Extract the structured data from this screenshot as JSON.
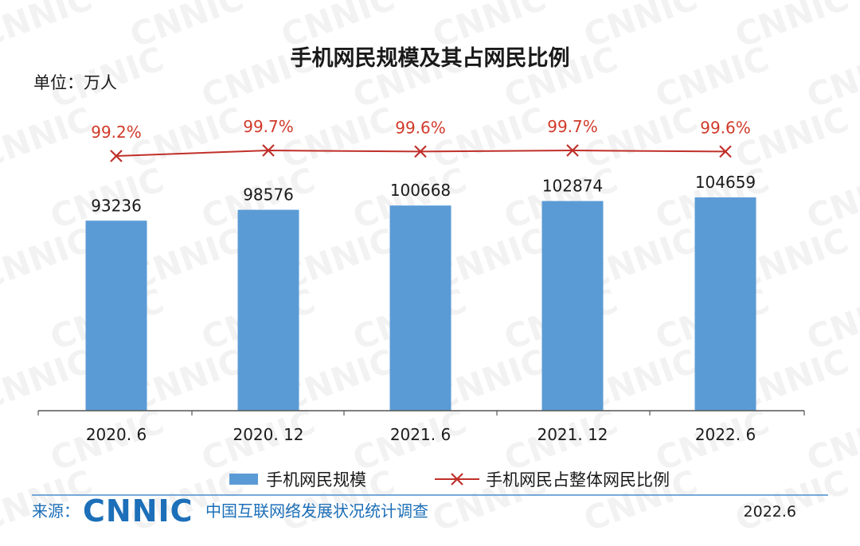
{
  "chart_data": {
    "type": "bar",
    "title": "手机网民规模及其占网民比例",
    "unit_label": "单位：万人",
    "categories": [
      "2020. 6",
      "2020. 12",
      "2021. 6",
      "2021. 12",
      "2022. 6"
    ],
    "series": [
      {
        "name": "手机网民规模",
        "type": "bar",
        "values": [
          93236,
          98576,
          100668,
          102874,
          104659
        ],
        "labels": [
          "93236",
          "98576",
          "100668",
          "102874",
          "104659"
        ]
      },
      {
        "name": "手机网民占整体网民比例",
        "type": "line",
        "values": [
          99.2,
          99.7,
          99.6,
          99.7,
          99.6
        ],
        "labels": [
          "99.2%",
          "99.7%",
          "99.6%",
          "99.7%",
          "99.6%"
        ]
      }
    ],
    "legend": "bottom",
    "grid": false
  },
  "footer": {
    "source_label": "来源：",
    "logo_text": "CNNIC",
    "org_name": "中国互联网络发展状况统计调查",
    "date": "2022.6"
  },
  "watermark": "CNNIC",
  "colors": {
    "bar": "#5b9bd5",
    "line": "#c0302a",
    "label_red": "#d03a2a",
    "logo_blue": "#1c6fb8",
    "text": "#1a1a1a",
    "axis": "#555555",
    "footer_rule": "#4a8fd0"
  }
}
